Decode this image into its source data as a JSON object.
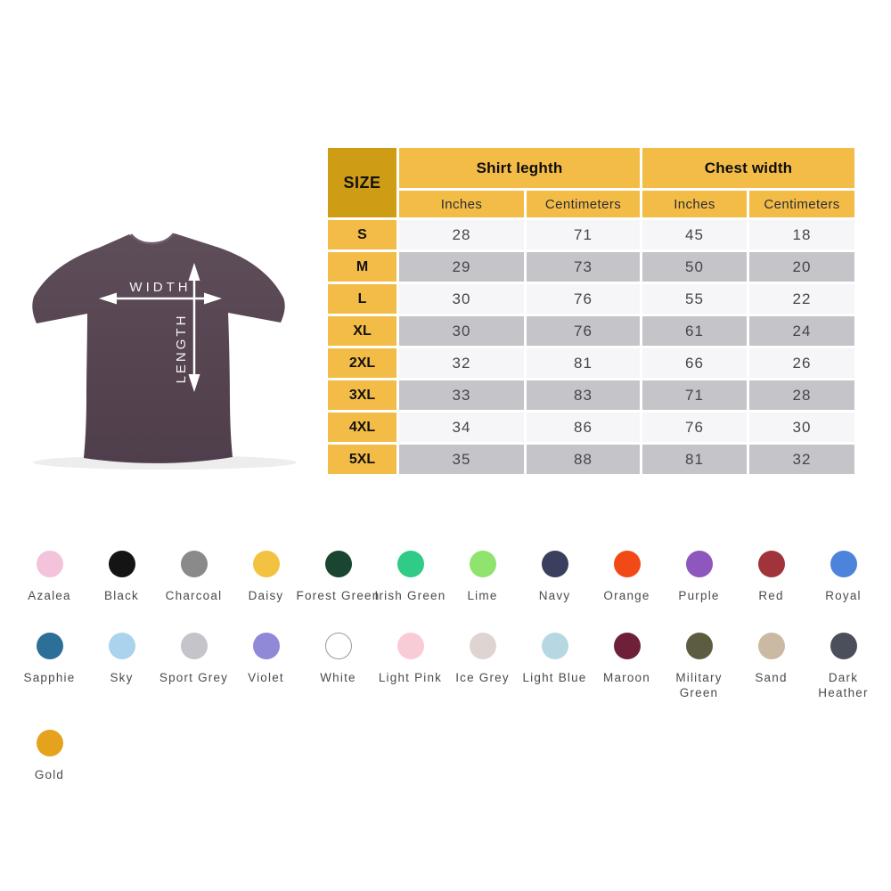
{
  "shirt_diagram": {
    "width_label": "WIDTH",
    "length_label": "LENGTH",
    "shirt_color": "#564451",
    "arrow_color": "#ffffff"
  },
  "size_table": {
    "corner_header": "SIZE",
    "group_headers": [
      "Shirt leghth",
      "Chest width"
    ],
    "sub_headers": [
      "Inches",
      "Centimeters",
      "Inches",
      "Centimeters"
    ],
    "rows": [
      {
        "size": "S",
        "values": [
          "28",
          "71",
          "45",
          "18"
        ]
      },
      {
        "size": "M",
        "values": [
          "29",
          "73",
          "50",
          "20"
        ]
      },
      {
        "size": "L",
        "values": [
          "30",
          "76",
          "55",
          "22"
        ]
      },
      {
        "size": "XL",
        "values": [
          "30",
          "76",
          "61",
          "24"
        ]
      },
      {
        "size": "2XL",
        "values": [
          "32",
          "81",
          "66",
          "26"
        ]
      },
      {
        "size": "3XL",
        "values": [
          "33",
          "83",
          "71",
          "28"
        ]
      },
      {
        "size": "4XL",
        "values": [
          "34",
          "86",
          "76",
          "30"
        ]
      },
      {
        "size": "5XL",
        "values": [
          "35",
          "88",
          "81",
          "32"
        ]
      }
    ],
    "colors": {
      "corner_bg": "#cf9d15",
      "header_bg": "#f3bc47",
      "row_label_bg": "#f3bc47",
      "row_light_bg": "#f6f5f7",
      "row_shaded_bg": "#c5c4c9"
    }
  },
  "color_swatches": {
    "rows": [
      [
        {
          "label": "Azalea",
          "color": "#f3c2db"
        },
        {
          "label": "Black",
          "color": "#141414"
        },
        {
          "label": "Charcoal",
          "color": "#8a8a8a"
        },
        {
          "label": "Daisy",
          "color": "#f2c240"
        },
        {
          "label": "Forest Green",
          "color": "#1a4631"
        },
        {
          "label": "Irish Green",
          "color": "#2fcb87"
        },
        {
          "label": "Lime",
          "color": "#90e36c"
        },
        {
          "label": "Navy",
          "color": "#3a3f5d"
        },
        {
          "label": "Orange",
          "color": "#f24a17"
        },
        {
          "label": "Purple",
          "color": "#8d57bd"
        },
        {
          "label": "Red",
          "color": "#a1343b"
        },
        {
          "label": "Royal",
          "color": "#4b84da"
        }
      ],
      [
        {
          "label": "Sapphie",
          "color": "#2c6f99"
        },
        {
          "label": "Sky",
          "color": "#aad3ed"
        },
        {
          "label": "Sport Grey",
          "color": "#c5c4cb"
        },
        {
          "label": "Violet",
          "color": "#8f89d7"
        },
        {
          "label": "White",
          "color": "#ffffff",
          "outlined": true
        },
        {
          "label": "Light Pink",
          "color": "#f9cbd7"
        },
        {
          "label": "Ice Grey",
          "color": "#ded5d2"
        },
        {
          "label": "Light Blue",
          "color": "#b7d8e2"
        },
        {
          "label": "Maroon",
          "color": "#6e2039"
        },
        {
          "label": "Military\nGreen",
          "color": "#5c5c40"
        },
        {
          "label": "Sand",
          "color": "#ccb9a4"
        },
        {
          "label": "Dark\nHeather",
          "color": "#4a4f5b"
        }
      ],
      [
        {
          "label": "Gold",
          "color": "#e5a31d"
        }
      ]
    ]
  },
  "chart_data": {
    "type": "table",
    "title": "T-shirt size chart",
    "columns": [
      "SIZE",
      "Shirt leghth Inches",
      "Shirt leghth Centimeters",
      "Chest width Inches",
      "Chest width Centimeters"
    ],
    "rows": [
      [
        "S",
        28,
        71,
        45,
        18
      ],
      [
        "M",
        29,
        73,
        50,
        20
      ],
      [
        "L",
        30,
        76,
        55,
        22
      ],
      [
        "XL",
        30,
        76,
        61,
        24
      ],
      [
        "2XL",
        32,
        81,
        66,
        26
      ],
      [
        "3XL",
        33,
        83,
        71,
        28
      ],
      [
        "4XL",
        34,
        86,
        76,
        30
      ],
      [
        "5XL",
        35,
        88,
        81,
        32
      ]
    ],
    "color_options": [
      "Azalea",
      "Black",
      "Charcoal",
      "Daisy",
      "Forest Green",
      "Irish Green",
      "Lime",
      "Navy",
      "Orange",
      "Purple",
      "Red",
      "Royal",
      "Sapphie",
      "Sky",
      "Sport Grey",
      "Violet",
      "White",
      "Light Pink",
      "Ice Grey",
      "Light Blue",
      "Maroon",
      "Military Green",
      "Sand",
      "Dark Heather",
      "Gold"
    ]
  }
}
